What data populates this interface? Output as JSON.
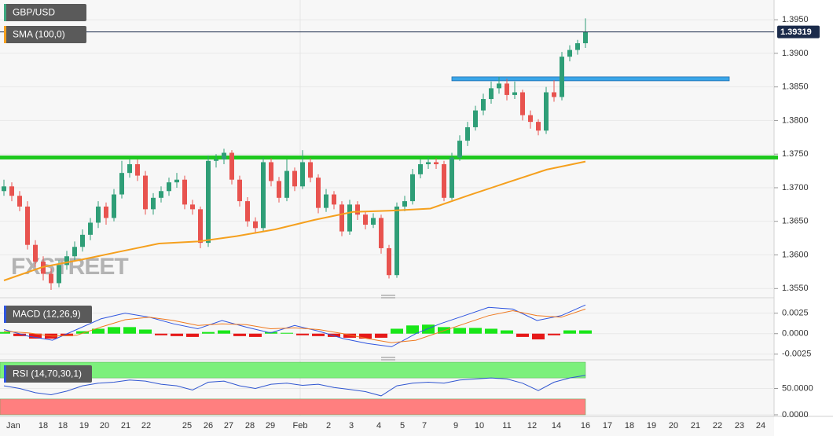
{
  "chart_data": [
    {
      "type": "candlestick",
      "title": "GBP/USD",
      "watermark": "FXSTREET",
      "up_color": "#2f9e77",
      "down_color": "#e8534f",
      "open": [
        1.3695,
        1.3702,
        1.3688,
        1.3672,
        1.3615,
        1.359,
        1.3572,
        1.3558,
        1.3585,
        1.3598,
        1.3612,
        1.363,
        1.3648,
        1.3672,
        1.3655,
        1.369,
        1.3722,
        1.3735,
        1.3718,
        1.3668,
        1.3685,
        1.3695,
        1.3708,
        1.3712,
        1.3675,
        1.3668,
        1.3618,
        1.374,
        1.3742,
        1.3752,
        1.3712,
        1.368,
        1.365,
        1.364,
        1.3738,
        1.371,
        1.3685,
        1.3725,
        1.3702,
        1.3738,
        1.3715,
        1.367,
        1.369,
        1.3675,
        1.3635,
        1.3675,
        1.366,
        1.3645,
        1.3655,
        1.361,
        1.357,
        1.3672,
        1.368,
        1.372,
        1.3735,
        1.3738,
        1.3735,
        1.3685,
        1.3745,
        1.377,
        1.379,
        1.3815,
        1.3832,
        1.3848,
        1.3855,
        1.3838,
        1.3842,
        1.3808,
        1.3798,
        1.3785,
        1.3842,
        1.3835,
        1.3895,
        1.3905,
        1.3915
      ],
      "high": [
        1.3712,
        1.3708,
        1.3695,
        1.368,
        1.3622,
        1.3598,
        1.358,
        1.3592,
        1.3606,
        1.362,
        1.3638,
        1.3655,
        1.368,
        1.3678,
        1.3698,
        1.374,
        1.3742,
        1.3742,
        1.3725,
        1.3692,
        1.3702,
        1.3715,
        1.3722,
        1.3718,
        1.3682,
        1.3672,
        1.3748,
        1.375,
        1.3758,
        1.3756,
        1.3718,
        1.3686,
        1.3656,
        1.3745,
        1.3744,
        1.3716,
        1.3742,
        1.373,
        1.3756,
        1.3744,
        1.372,
        1.3698,
        1.3695,
        1.368,
        1.3682,
        1.368,
        1.3665,
        1.3662,
        1.366,
        1.3615,
        1.3678,
        1.3688,
        1.3728,
        1.3742,
        1.3745,
        1.3744,
        1.374,
        1.3752,
        1.3778,
        1.3798,
        1.3822,
        1.384,
        1.3858,
        1.3865,
        1.3862,
        1.3858,
        1.3846,
        1.3815,
        1.3802,
        1.385,
        1.386,
        1.3902,
        1.3912,
        1.392,
        1.3952
      ],
      "low": [
        1.3688,
        1.368,
        1.3665,
        1.3608,
        1.3582,
        1.3562,
        1.3548,
        1.3552,
        1.3578,
        1.359,
        1.3605,
        1.3622,
        1.364,
        1.3645,
        1.365,
        1.3684,
        1.3715,
        1.371,
        1.366,
        1.366,
        1.3678,
        1.3688,
        1.37,
        1.3668,
        1.366,
        1.361,
        1.3612,
        1.373,
        1.3735,
        1.3705,
        1.3672,
        1.3642,
        1.3632,
        1.3635,
        1.3702,
        1.3678,
        1.368,
        1.3695,
        1.3698,
        1.3708,
        1.3662,
        1.3664,
        1.3668,
        1.3628,
        1.363,
        1.3652,
        1.3638,
        1.364,
        1.3602,
        1.3565,
        1.3566,
        1.3665,
        1.3675,
        1.3714,
        1.3728,
        1.3728,
        1.368,
        1.3682,
        1.374,
        1.3762,
        1.3785,
        1.3808,
        1.3825,
        1.384,
        1.383,
        1.3832,
        1.38,
        1.3788,
        1.3778,
        1.378,
        1.3828,
        1.383,
        1.3888,
        1.3898,
        1.3908
      ],
      "close": [
        1.3702,
        1.3688,
        1.3672,
        1.3615,
        1.359,
        1.3572,
        1.3558,
        1.3585,
        1.3598,
        1.3612,
        1.363,
        1.3648,
        1.3672,
        1.3655,
        1.369,
        1.3722,
        1.3735,
        1.3718,
        1.3668,
        1.3685,
        1.3695,
        1.3708,
        1.3712,
        1.3675,
        1.3668,
        1.3618,
        1.374,
        1.3742,
        1.3752,
        1.3712,
        1.368,
        1.365,
        1.364,
        1.3738,
        1.371,
        1.3685,
        1.3725,
        1.3702,
        1.3738,
        1.3715,
        1.367,
        1.369,
        1.3675,
        1.3635,
        1.3675,
        1.366,
        1.3645,
        1.3655,
        1.361,
        1.357,
        1.3672,
        1.368,
        1.372,
        1.3735,
        1.3738,
        1.3735,
        1.3685,
        1.3745,
        1.377,
        1.379,
        1.3815,
        1.3832,
        1.3848,
        1.3855,
        1.3838,
        1.3842,
        1.3808,
        1.3798,
        1.3785,
        1.3842,
        1.3835,
        1.3895,
        1.3905,
        1.3915,
        1.3932
      ],
      "overlays": [
        {
          "name": "SMA (100,0)",
          "color": "#f5a01e",
          "values": [
            1.3562,
            1.3582,
            1.3593,
            1.3605,
            1.3617,
            1.362,
            1.3628,
            1.3638,
            1.3652,
            1.3664,
            1.3666,
            1.3669,
            1.3689,
            1.3708,
            1.3727,
            1.3739
          ]
        }
      ],
      "levels": [
        {
          "value": 1.3745,
          "color": "#1ec81e"
        },
        {
          "value": 1.3862,
          "color": "#3aa6e8"
        }
      ],
      "last_price": 1.39319,
      "last_price_color": "#1b2b4b",
      "ylim": [
        1.3541,
        1.3977
      ],
      "yticks": [
        {
          "value": 1.355,
          "label": "1.3550"
        },
        {
          "value": 1.36,
          "label": "1.3600"
        },
        {
          "value": 1.365,
          "label": "1.3650"
        },
        {
          "value": 1.37,
          "label": "1.3700"
        },
        {
          "value": 1.375,
          "label": "1.3750"
        },
        {
          "value": 1.38,
          "label": "1.3800"
        },
        {
          "value": 1.385,
          "label": "1.3850"
        },
        {
          "value": 1.39,
          "label": "1.3900"
        },
        {
          "value": 1.395,
          "label": "1.3950"
        }
      ],
      "categories": [
        "Jan",
        "18",
        "18",
        "19",
        "20",
        "21",
        "22",
        "25",
        "26",
        "27",
        "28",
        "29",
        "Feb",
        "2",
        "3",
        "4",
        "5",
        "7",
        "9",
        "10",
        "11",
        "12",
        "14",
        "16",
        "17",
        "18",
        "19",
        "20",
        "21",
        "22",
        "23",
        "24"
      ]
    },
    {
      "type": "macd",
      "title": "MACD (12,26,9)",
      "lines": [
        {
          "color": "#2f55e0",
          "values": [
            0.0005,
            -0.0003,
            -0.0008,
            0.0005,
            0.0018,
            0.0025,
            0.002,
            0.0012,
            0.0006,
            0.0016,
            0.0008,
            0.0001,
            0.001,
            0.0003,
            -0.0006,
            -0.0012,
            -0.0016,
            0.0,
            0.0012,
            0.0022,
            0.0032,
            0.003,
            0.0016,
            0.0022,
            0.0035
          ]
        },
        {
          "color": "#f07a20",
          "values": [
            0.0003,
            0.0001,
            -0.0003,
            -0.0002,
            0.0008,
            0.0017,
            0.002,
            0.0016,
            0.001,
            0.0012,
            0.0011,
            0.0006,
            0.0007,
            0.0005,
            0.0,
            -0.0006,
            -0.0011,
            -0.0008,
            0.0002,
            0.0012,
            0.0022,
            0.0028,
            0.0022,
            0.002,
            0.003
          ]
        }
      ],
      "histogram": {
        "up_color": "#19e619",
        "down_color": "#e61919",
        "values": [
          0.0002,
          -0.0003,
          -0.0006,
          -0.0006,
          -0.0003,
          0.0003,
          0.0006,
          0.0008,
          0.0008,
          0.0005,
          -0.0002,
          -0.0003,
          -0.0004,
          0.0002,
          0.0004,
          -0.0003,
          -0.0004,
          0.0002,
          0.0001,
          -0.0002,
          -0.0003,
          -0.0004,
          -0.0005,
          -0.0006,
          -0.0005,
          0.0006,
          0.001,
          0.0011,
          0.0008,
          0.0007,
          0.0007,
          0.0006,
          0.0004,
          -0.0004,
          -0.0007,
          -0.0002,
          0.0004,
          0.0004
        ]
      },
      "ylim": [
        -0.0029,
        0.0039
      ],
      "yticks": [
        {
          "value": 0.0025,
          "label": "0.0025"
        },
        {
          "value": 0,
          "label": "0.0000"
        },
        {
          "value": -0.0025,
          "label": "-0.0025"
        }
      ]
    },
    {
      "type": "rsi",
      "title": "RSI (14,70,30,1)",
      "color": "#2f55d0",
      "values": [
        55,
        50,
        42,
        38,
        45,
        55,
        60,
        62,
        66,
        64,
        58,
        55,
        47,
        62,
        64,
        55,
        50,
        58,
        60,
        56,
        58,
        52,
        48,
        44,
        36,
        55,
        60,
        62,
        60,
        66,
        68,
        70,
        68,
        60,
        46,
        62,
        70,
        75
      ],
      "bands": [
        {
          "from": 70,
          "to": 100,
          "color": "#7cf07c"
        },
        {
          "from": 0,
          "to": 30,
          "color": "#ff7f7f"
        }
      ],
      "ylim": [
        0,
        100
      ],
      "yticks": [
        {
          "value": 50,
          "label": "50.0000"
        },
        {
          "value": 0,
          "label": "0.0000"
        }
      ]
    }
  ]
}
